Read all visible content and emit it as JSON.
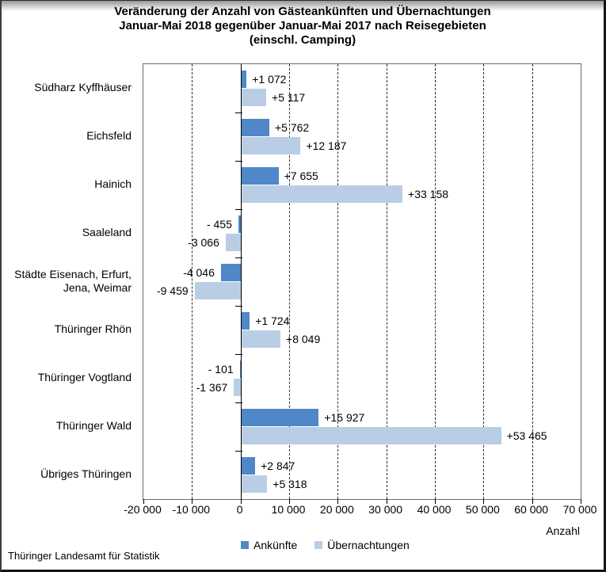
{
  "title": {
    "line1": "Veränderung der Anzahl von Gästeankünften und Übernachtungen",
    "line2": "Januar-Mai 2018 gegenüber Januar-Mai 2017 nach Reisegebieten",
    "line3": "(einschl. Camping)"
  },
  "footer": {
    "source": "Thüringer Landesamt für Statistik"
  },
  "colors": {
    "ankuenfte": "#4F87C9",
    "uebernachtungen": "#B9CDE5",
    "zero_axis": "#000000",
    "plot_border": "#6B6B6B"
  },
  "chart_data": {
    "type": "bar",
    "orientation": "horizontal",
    "title": "Veränderung der Anzahl von Gästeankünften und Übernachtungen Januar-Mai 2018 gegenüber Januar-Mai 2017 nach Reisegebieten (einschl. Camping)",
    "categories": [
      "Südharz Kyffhäuser",
      "Eichsfeld",
      "Hainich",
      "Saaleland",
      "Städte Eisenach, Erfurt,\nJena, Weimar",
      "Thüringer Rhön",
      "Thüringer Vogtland",
      "Thüringer Wald",
      "Übriges Thüringen"
    ],
    "series": [
      {
        "name": "Ankünfte",
        "color": "#4F87C9",
        "values": [
          1072,
          5762,
          7655,
          -455,
          -4046,
          1724,
          -101,
          15927,
          2847
        ],
        "labels": [
          "+1 072",
          "+5 762",
          "+7 655",
          "- 455",
          "-4 046",
          "+1 724",
          "- 101",
          "+15 927",
          "+2 847"
        ]
      },
      {
        "name": "Übernachtungen",
        "color": "#B9CDE5",
        "values": [
          5117,
          12187,
          33158,
          -3066,
          -9459,
          8049,
          -1367,
          53465,
          5318
        ],
        "labels": [
          "+5 117",
          "+12 187",
          "+33 158",
          "-3 066",
          "-9 459",
          "+8 049",
          "-1 367",
          "+53 465",
          "+5 318"
        ]
      }
    ],
    "xlabel": "Anzahl",
    "xlim": [
      -20000,
      70000
    ],
    "xticks": [
      -20000,
      -10000,
      0,
      10000,
      20000,
      30000,
      40000,
      50000,
      60000,
      70000
    ],
    "xtick_labels": [
      "-20 000",
      "-10 000",
      "0",
      "10 000",
      "20 000",
      "30 000",
      "40 000",
      "50 000",
      "60 000",
      "70 000"
    ],
    "grid": "vertical-dashed",
    "legend_position": "bottom"
  }
}
